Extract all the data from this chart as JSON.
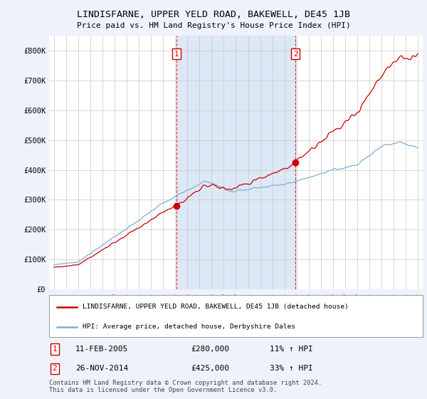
{
  "title": "LINDISFARNE, UPPER YELD ROAD, BAKEWELL, DE45 1JB",
  "subtitle": "Price paid vs. HM Land Registry's House Price Index (HPI)",
  "ylim": [
    0,
    850000
  ],
  "yticks": [
    0,
    100000,
    200000,
    300000,
    400000,
    500000,
    600000,
    700000,
    800000
  ],
  "ytick_labels": [
    "£0",
    "£100K",
    "£200K",
    "£300K",
    "£400K",
    "£500K",
    "£600K",
    "£700K",
    "£800K"
  ],
  "hpi_color": "#7bafd4",
  "price_color": "#cc0000",
  "shade_color": "#dce8f5",
  "sale1_date": "11-FEB-2005",
  "sale1_price": 280000,
  "sale1_pct": "11%",
  "sale1_year": 2005.12,
  "sale2_date": "26-NOV-2014",
  "sale2_price": 425000,
  "sale2_pct": "33%",
  "sale2_year": 2014.91,
  "legend_label1": "LINDISFARNE, UPPER YELD ROAD, BAKEWELL, DE45 1JB (detached house)",
  "legend_label2": "HPI: Average price, detached house, Derbyshire Dales",
  "footnote1": "Contains HM Land Registry data © Crown copyright and database right 2024.",
  "footnote2": "This data is licensed under the Open Government Licence v3.0.",
  "bg_color": "#eef2fb",
  "plot_bg": "#ffffff"
}
